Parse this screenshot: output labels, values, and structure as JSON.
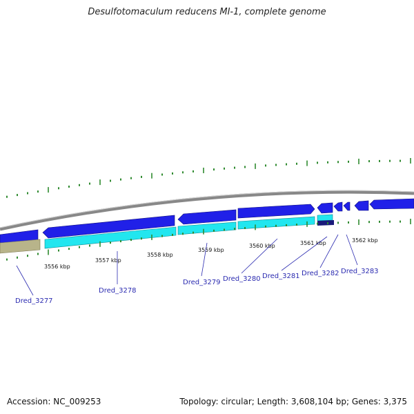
{
  "title": "Desulfotomaculum reducens MI-1, complete genome",
  "footer": {
    "accession": "Accession: NC_009253",
    "topology": "Topology: circular; Length: 3,608,104 bp; Genes: 3,375"
  },
  "colors": {
    "backbone": "#888888",
    "forward_gene": "#2020e8",
    "reverse_cds": "#22e6ef",
    "rna": "#b8b48a",
    "tick": "#2f8a2f",
    "leader": "#2a2ab0",
    "dark_gene": "#1a1a7a"
  },
  "kbp_marks": [
    "3556 kbp",
    "3557 kbp",
    "3558 kbp",
    "3559 kbp",
    "3560 kbp",
    "3561 kbp",
    "3562 kbp"
  ],
  "gene_labels": [
    "Dred_3277",
    "Dred_3278",
    "Dred_3279",
    "Dred_3280",
    "Dred_3281",
    "Dred_3282",
    "Dred_3283"
  ]
}
